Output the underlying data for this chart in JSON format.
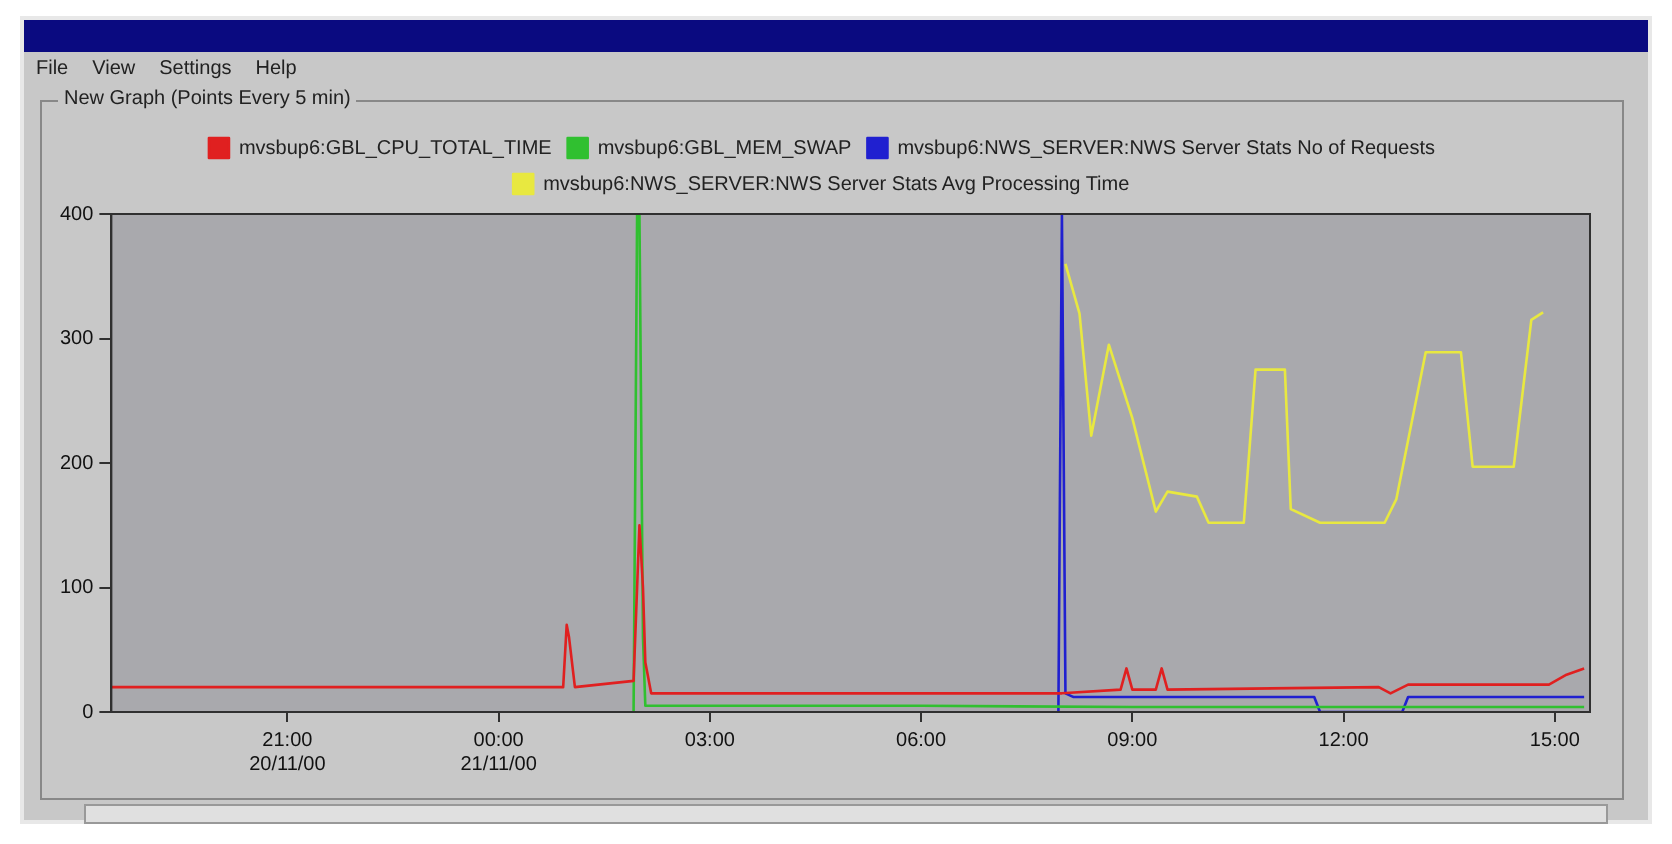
{
  "chart_data": {
    "type": "line",
    "title": "New Graph (Points Every 5 min)",
    "legend": "top",
    "grid": false,
    "marker": "none",
    "line_style": "solid",
    "annotations": [
      "File",
      "View",
      "Settings",
      "Help"
    ],
    "xlim": [
      "2000-11-20T18:30",
      "2000-11-21T15:30"
    ],
    "ylim": [
      0,
      400
    ],
    "yticks": [
      0,
      100,
      200,
      300,
      400
    ],
    "xticks": [
      {
        "value": "2000-11-20T21:00",
        "label": "21:00\n20/11/00"
      },
      {
        "value": "2000-11-21T00:00",
        "label": "00:00\n21/11/00"
      },
      {
        "value": "2000-11-21T03:00",
        "label": "03:00"
      },
      {
        "value": "2000-11-21T06:00",
        "label": "06:00"
      },
      {
        "value": "2000-11-21T09:00",
        "label": "09:00"
      },
      {
        "value": "2000-11-21T12:00",
        "label": "12:00"
      },
      {
        "value": "2000-11-21T15:00",
        "label": "15:00"
      }
    ],
    "series": [
      {
        "name": "mvsbup6:GBL_CPU_TOTAL_TIME",
        "color": "#e02020",
        "x": [
          "2000-11-20T18:30",
          "2000-11-21T00:55",
          "2000-11-21T00:58",
          "2000-11-21T01:00",
          "2000-11-21T01:05",
          "2000-11-21T01:55",
          "2000-11-21T01:58",
          "2000-11-21T02:00",
          "2000-11-21T02:03",
          "2000-11-21T02:05",
          "2000-11-21T02:10",
          "2000-11-21T08:00",
          "2000-11-21T08:50",
          "2000-11-21T08:55",
          "2000-11-21T09:00",
          "2000-11-21T09:20",
          "2000-11-21T09:25",
          "2000-11-21T09:30",
          "2000-11-21T12:30",
          "2000-11-21T12:40",
          "2000-11-21T12:55",
          "2000-11-21T14:55",
          "2000-11-21T15:10",
          "2000-11-21T15:25"
        ],
        "values": [
          20,
          20,
          70,
          60,
          20,
          25,
          100,
          150,
          100,
          40,
          15,
          15,
          18,
          35,
          18,
          18,
          35,
          18,
          20,
          15,
          22,
          22,
          30,
          35
        ]
      },
      {
        "name": "mvsbup6:GBL_MEM_SWAP",
        "color": "#30c030",
        "x": [
          "2000-11-21T01:55",
          "2000-11-21T01:58",
          "2000-11-21T02:00",
          "2000-11-21T02:03",
          "2000-11-21T02:05",
          "2000-11-21T06:00",
          "2000-11-21T09:00",
          "2000-11-21T12:00",
          "2000-11-21T15:25"
        ],
        "values": [
          0,
          400,
          400,
          60,
          5,
          5,
          4,
          4,
          4
        ]
      },
      {
        "name": "mvsbup6:NWS_SERVER:NWS Server Stats No of Requests",
        "color": "#2020d0",
        "x": [
          "2000-11-21T07:57",
          "2000-11-21T08:00",
          "2000-11-21T08:03",
          "2000-11-21T08:10",
          "2000-11-21T09:00",
          "2000-11-21T11:35",
          "2000-11-21T11:40",
          "2000-11-21T12:50",
          "2000-11-21T12:55",
          "2000-11-21T15:25"
        ],
        "values": [
          0,
          400,
          15,
          12,
          12,
          12,
          0,
          0,
          12,
          12
        ]
      },
      {
        "name": "mvsbup6:NWS_SERVER:NWS Server Stats Avg Processing Time",
        "color": "#e8e840",
        "x": [
          "2000-11-21T08:03",
          "2000-11-21T08:15",
          "2000-11-21T08:25",
          "2000-11-21T08:40",
          "2000-11-21T09:00",
          "2000-11-21T09:20",
          "2000-11-21T09:30",
          "2000-11-21T09:55",
          "2000-11-21T10:05",
          "2000-11-21T10:35",
          "2000-11-21T10:45",
          "2000-11-21T11:10",
          "2000-11-21T11:15",
          "2000-11-21T11:40",
          "2000-11-21T12:35",
          "2000-11-21T12:45",
          "2000-11-21T13:10",
          "2000-11-21T13:40",
          "2000-11-21T13:50",
          "2000-11-21T14:25",
          "2000-11-21T14:40",
          "2000-11-21T14:50"
        ],
        "values": [
          360,
          320,
          222,
          295,
          236,
          161,
          177,
          173,
          152,
          152,
          275,
          275,
          163,
          152,
          152,
          171,
          289,
          289,
          197,
          197,
          315,
          321
        ]
      }
    ]
  }
}
